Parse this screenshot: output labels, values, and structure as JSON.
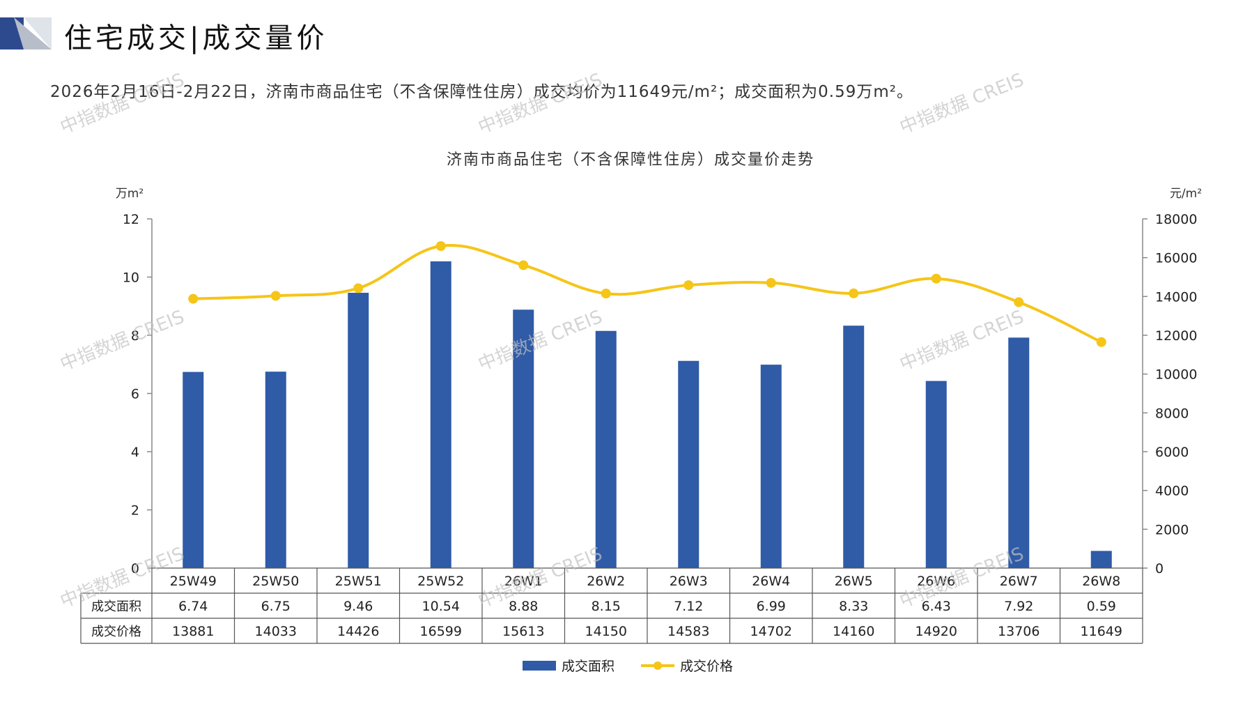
{
  "page": {
    "title": "住宅成交|成交量价",
    "summary": "2026年2月16日-2月22日，济南市商品住宅（不含保障性住房）成交均价为11649元/m²；成交面积为0.59万m²。",
    "watermark_text": "中指数据 CREIS"
  },
  "colors": {
    "bar": "#2f5ba7",
    "line": "#f5c518",
    "axis": "#888888",
    "logo_dark": "#2e4a8f",
    "logo_light": "#b8bec9"
  },
  "chart_data": {
    "type": "bar",
    "title": "济南市商品住宅（不含保障性住房）成交量价走势",
    "y_left_unit": "万m²",
    "y_right_unit": "元/m²",
    "ylim_left": [
      0,
      12
    ],
    "yticks_left": [
      "0",
      "2",
      "4",
      "6",
      "8",
      "10",
      "12"
    ],
    "ylim_right": [
      0,
      18000
    ],
    "yticks_right": [
      "0",
      "2000",
      "4000",
      "6000",
      "8000",
      "10000",
      "12000",
      "14000",
      "16000",
      "18000"
    ],
    "categories": [
      "25W49",
      "25W50",
      "25W51",
      "25W52",
      "26W1",
      "26W2",
      "26W3",
      "26W4",
      "26W5",
      "26W6",
      "26W7",
      "26W8"
    ],
    "series": [
      {
        "name": "成交面积",
        "type": "bar",
        "axis": "left",
        "values": [
          6.74,
          6.75,
          9.46,
          10.54,
          8.88,
          8.15,
          7.12,
          6.99,
          8.33,
          6.43,
          7.92,
          0.59
        ],
        "labels": [
          "6.74",
          "6.75",
          "9.46",
          "10.54",
          "8.88",
          "8.15",
          "7.12",
          "6.99",
          "8.33",
          "6.43",
          "7.92",
          "0.59"
        ]
      },
      {
        "name": "成交价格",
        "type": "line",
        "axis": "right",
        "values": [
          13881,
          14033,
          14426,
          16599,
          15613,
          14150,
          14583,
          14702,
          14160,
          14920,
          13706,
          11649
        ],
        "labels": [
          "13881",
          "14033",
          "14426",
          "16599",
          "15613",
          "14150",
          "14583",
          "14702",
          "14160",
          "14920",
          "13706",
          "11649"
        ]
      }
    ],
    "legend": {
      "placement": "bottom-center"
    },
    "grid": false,
    "data_table": true
  }
}
